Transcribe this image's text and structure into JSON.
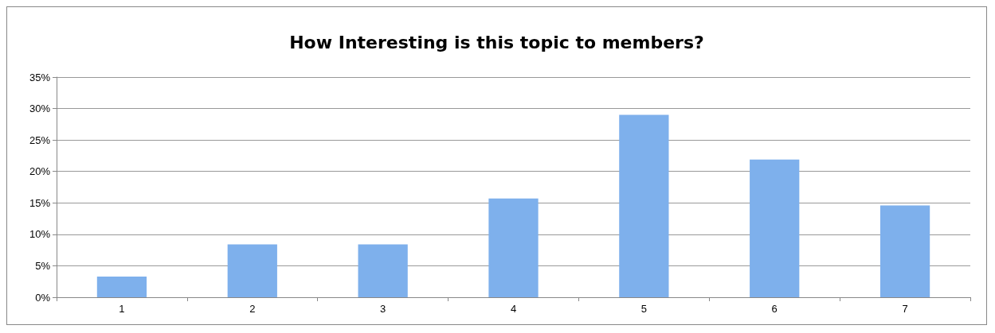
{
  "chart_data": {
    "type": "bar",
    "title": "How Interesting is this topic to members?",
    "categories": [
      "1",
      "2",
      "3",
      "4",
      "5",
      "6",
      "7"
    ],
    "values": [
      3.3,
      8.4,
      8.4,
      15.7,
      29,
      21.9,
      14.6
    ],
    "color": "#7eb0ec",
    "ylim": [
      0,
      35
    ],
    "yticks": [
      {
        "value": 0,
        "label": "0%"
      },
      {
        "value": 5,
        "label": "5%"
      },
      {
        "value": 10,
        "label": "10%"
      },
      {
        "value": 15,
        "label": "15%"
      },
      {
        "value": 20,
        "label": "20%"
      },
      {
        "value": 25,
        "label": "25%"
      },
      {
        "value": 30,
        "label": "30%"
      },
      {
        "value": 35,
        "label": "35%"
      }
    ],
    "grid": "y"
  }
}
